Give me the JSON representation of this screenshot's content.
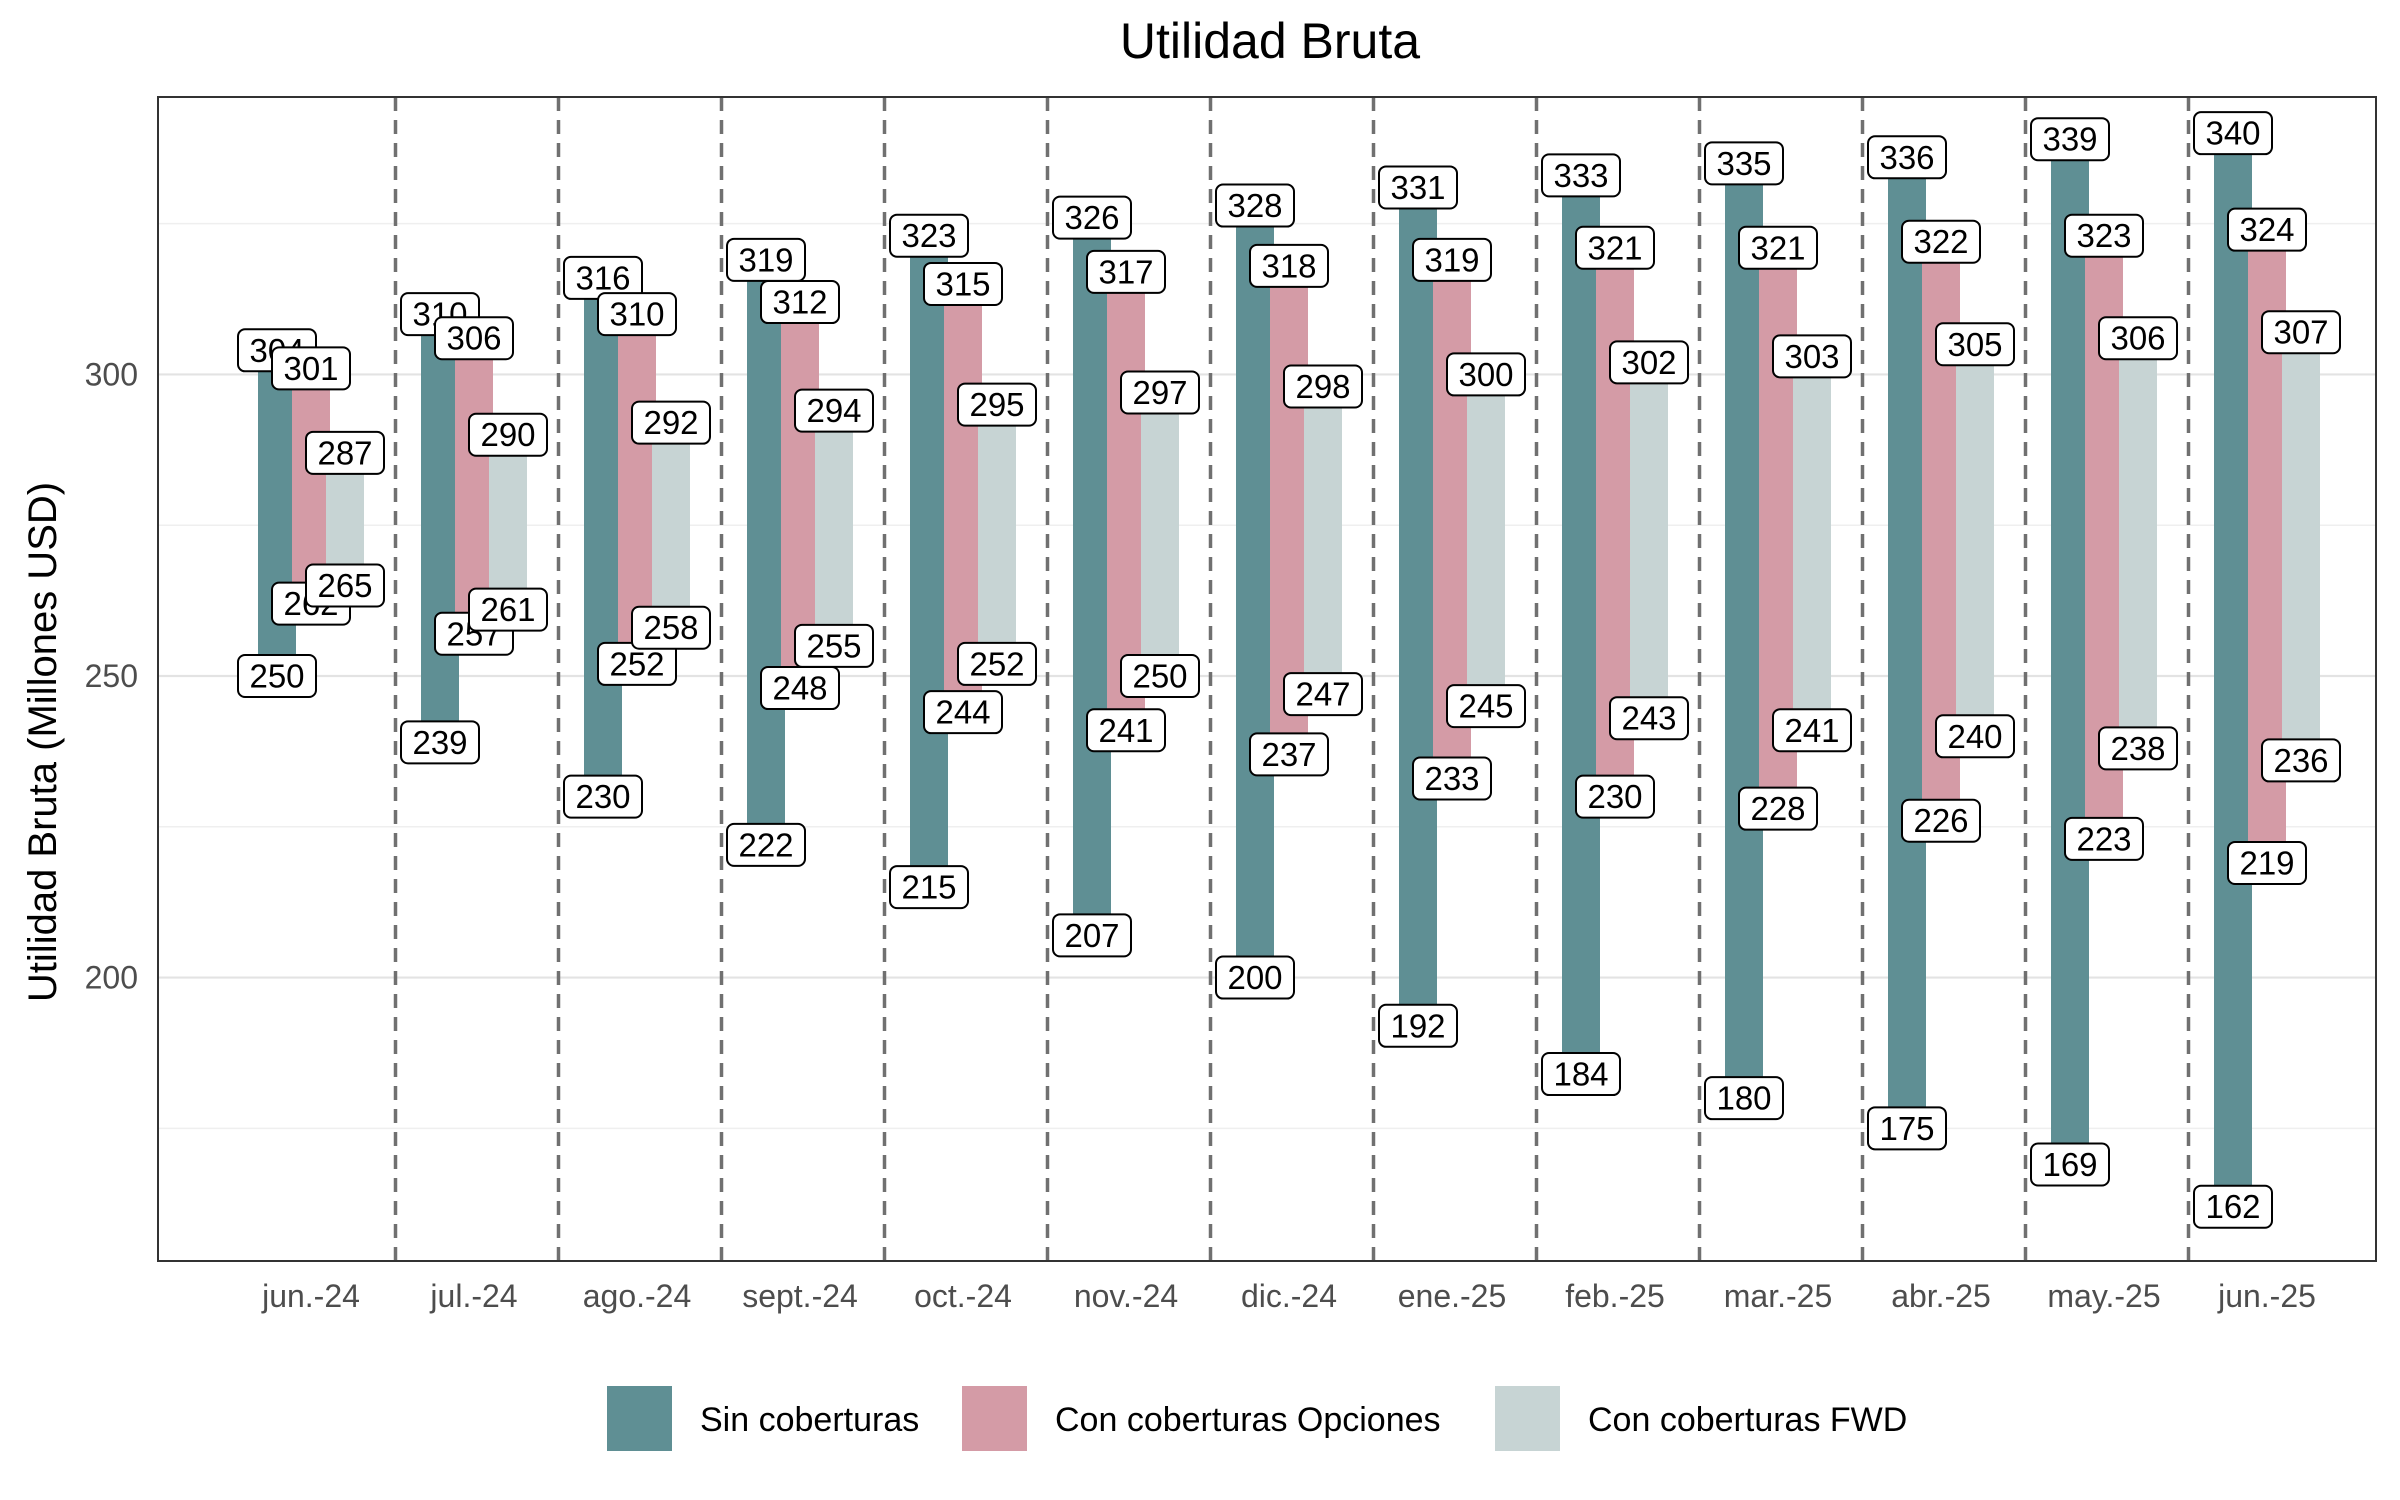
{
  "chart_data": {
    "type": "range-bar",
    "title": "Utilidad Bruta",
    "xlabel": "",
    "ylabel": "Utilidad Bruta (Millones USD)",
    "ylim": [
      153,
      346
    ],
    "yticks": [
      200,
      250,
      300
    ],
    "grid": true,
    "legend_position": "bottom",
    "categories": [
      "jun.-24",
      "jul.-24",
      "ago.-24",
      "sept.-24",
      "oct.-24",
      "nov.-24",
      "dic.-24",
      "ene.-25",
      "feb.-25",
      "mar.-25",
      "abr.-25",
      "may.-25",
      "jun.-25"
    ],
    "series": [
      {
        "name": "Sin coberturas",
        "color": "#5f8f94",
        "low": [
          250,
          239,
          230,
          222,
          215,
          207,
          200,
          192,
          184,
          180,
          175,
          169,
          162
        ],
        "high": [
          304,
          310,
          316,
          319,
          323,
          326,
          328,
          331,
          333,
          335,
          336,
          339,
          340
        ]
      },
      {
        "name": "Con coberturas Opciones",
        "color": "#d49ba6",
        "low": [
          262,
          257,
          252,
          248,
          244,
          241,
          237,
          233,
          230,
          228,
          226,
          223,
          219
        ],
        "high": [
          301,
          306,
          310,
          312,
          315,
          317,
          318,
          319,
          321,
          321,
          322,
          323,
          324
        ]
      },
      {
        "name": "Con coberturas FWD",
        "color": "#c7d4d4",
        "low": [
          265,
          261,
          258,
          255,
          252,
          250,
          247,
          245,
          243,
          241,
          240,
          238,
          236
        ],
        "high": [
          287,
          290,
          292,
          294,
          295,
          297,
          298,
          300,
          302,
          303,
          305,
          306,
          307
        ]
      }
    ]
  }
}
